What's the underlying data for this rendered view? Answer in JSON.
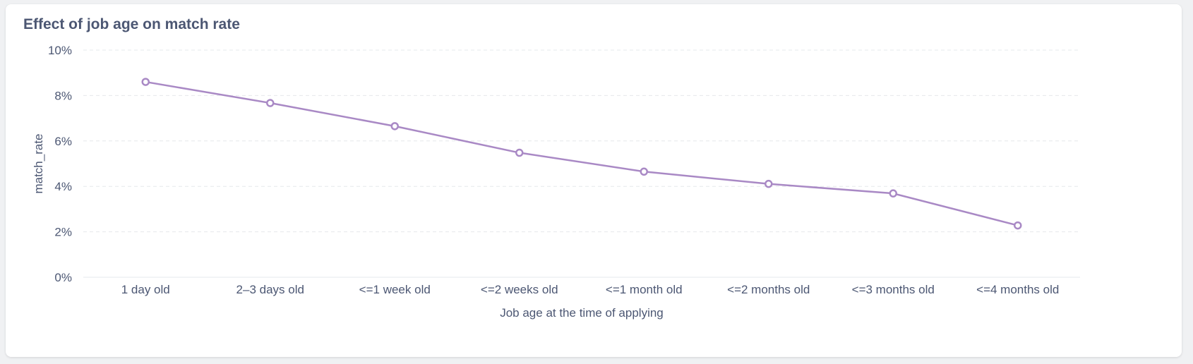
{
  "card": {
    "title": "Effect of job age on match rate"
  },
  "chart_data": {
    "type": "line",
    "title": "Effect of job age on match rate",
    "xlabel": "Job age at the time of applying",
    "ylabel": "match_rate",
    "categories": [
      "1 day old",
      "2–3 days old",
      "<=1 week old",
      "<=2 weeks old",
      "<=1 month old",
      "<=2 months old",
      "<=3 months old",
      "<=4 months old"
    ],
    "series": [
      {
        "values": [
          0.086,
          0.0767,
          0.0665,
          0.0548,
          0.0465,
          0.0411,
          0.0369,
          0.0228
        ]
      }
    ],
    "y_ticks": [
      "0%",
      "2%",
      "4%",
      "6%",
      "8%",
      "10%"
    ],
    "ylim": [
      0,
      0.1
    ],
    "grid": true,
    "line_color": "#a989c5",
    "text_color": "#4c5773",
    "grid_color": "#e6e8ec"
  }
}
